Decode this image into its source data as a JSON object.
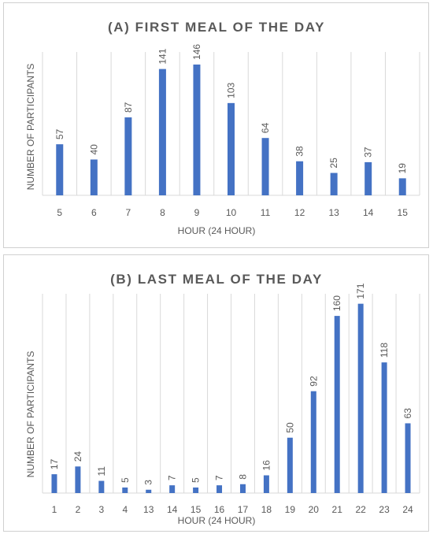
{
  "chart_data": [
    {
      "type": "bar",
      "title": "(A) FIRST MEAL OF THE DAY",
      "xlabel": "HOUR (24 HOUR)",
      "ylabel": "NUMBER OF PARTICIPANTS",
      "categories": [
        "5",
        "6",
        "7",
        "8",
        "9",
        "10",
        "11",
        "12",
        "13",
        "14",
        "15"
      ],
      "values": [
        57,
        40,
        87,
        141,
        146,
        103,
        64,
        38,
        25,
        37,
        19
      ],
      "ylim": [
        0,
        160
      ],
      "grid": "vertical",
      "bar_color": "#4472c4",
      "legend": "none"
    },
    {
      "type": "bar",
      "title": "(B) LAST MEAL OF THE DAY",
      "xlabel": "HOUR (24 HOUR)",
      "ylabel": "NUMBER OF PARTICIPANTS",
      "categories": [
        "1",
        "2",
        "3",
        "4",
        "13",
        "14",
        "15",
        "16",
        "17",
        "18",
        "19",
        "20",
        "21",
        "22",
        "23",
        "24"
      ],
      "values": [
        17,
        24,
        11,
        5,
        3,
        7,
        5,
        7,
        8,
        16,
        50,
        92,
        160,
        171,
        118,
        63
      ],
      "ylim": [
        0,
        180
      ],
      "grid": "vertical",
      "bar_color": "#4472c4",
      "legend": "none"
    }
  ]
}
